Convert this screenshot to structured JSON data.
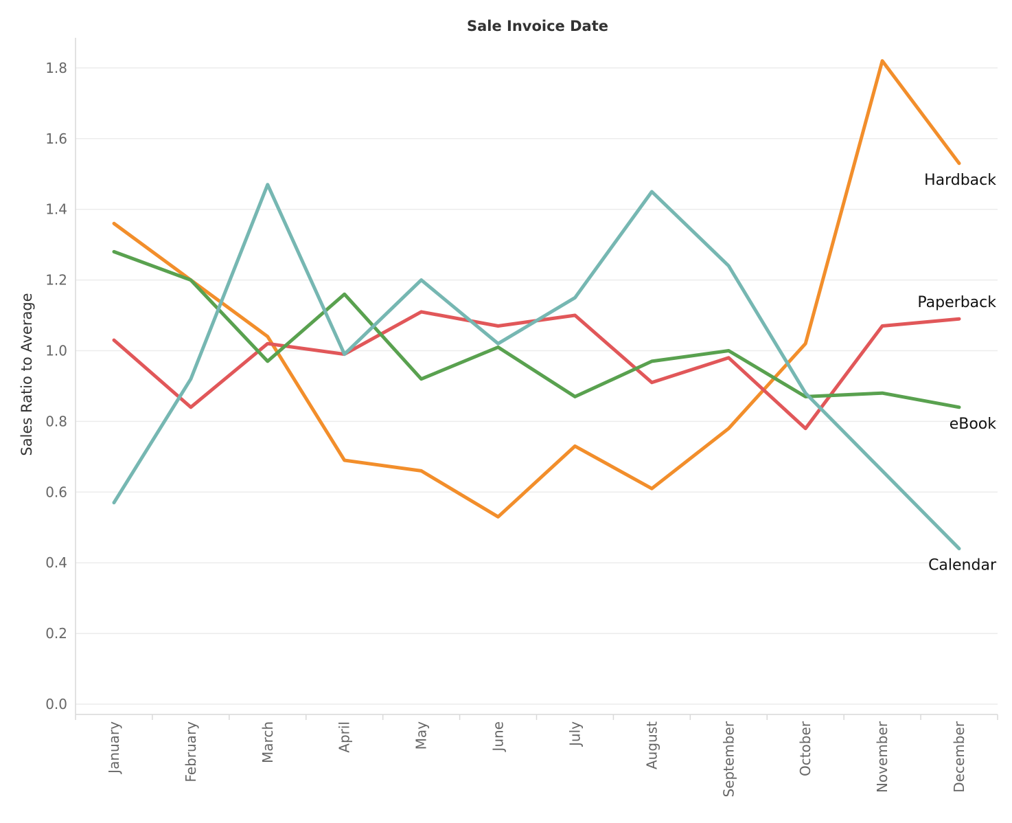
{
  "chart_data": {
    "type": "line",
    "title": "Sale Invoice Date",
    "xlabel": "",
    "ylabel": "Sales Ratio to Average",
    "ylim": [
      0,
      1.9
    ],
    "yticks": [
      "0.0",
      "0.2",
      "0.4",
      "0.6",
      "0.8",
      "1.0",
      "1.2",
      "1.4",
      "1.6",
      "1.8"
    ],
    "grid": true,
    "legend": "inline labels at right end of lines",
    "categories": [
      "January",
      "February",
      "March",
      "April",
      "May",
      "June",
      "July",
      "August",
      "September",
      "October",
      "November",
      "December"
    ],
    "series": [
      {
        "name": "Hardback",
        "color": "#f28e2b",
        "values": [
          1.36,
          1.2,
          1.04,
          0.69,
          0.66,
          0.53,
          0.73,
          0.61,
          0.78,
          1.02,
          1.82,
          1.53
        ]
      },
      {
        "name": "Paperback",
        "color": "#e15759",
        "values": [
          1.03,
          0.84,
          1.02,
          0.99,
          1.11,
          1.07,
          1.1,
          0.91,
          0.98,
          0.78,
          1.07,
          1.09
        ]
      },
      {
        "name": "eBook",
        "color": "#59a14f",
        "values": [
          1.28,
          1.2,
          0.97,
          1.16,
          0.92,
          1.01,
          0.87,
          0.97,
          1.0,
          0.87,
          0.88,
          0.84
        ]
      },
      {
        "name": "Calendar",
        "color": "#76b7b2",
        "values": [
          0.57,
          0.92,
          1.47,
          0.99,
          1.2,
          1.02,
          1.15,
          1.45,
          1.24,
          0.88,
          0.66,
          0.44
        ]
      }
    ]
  }
}
